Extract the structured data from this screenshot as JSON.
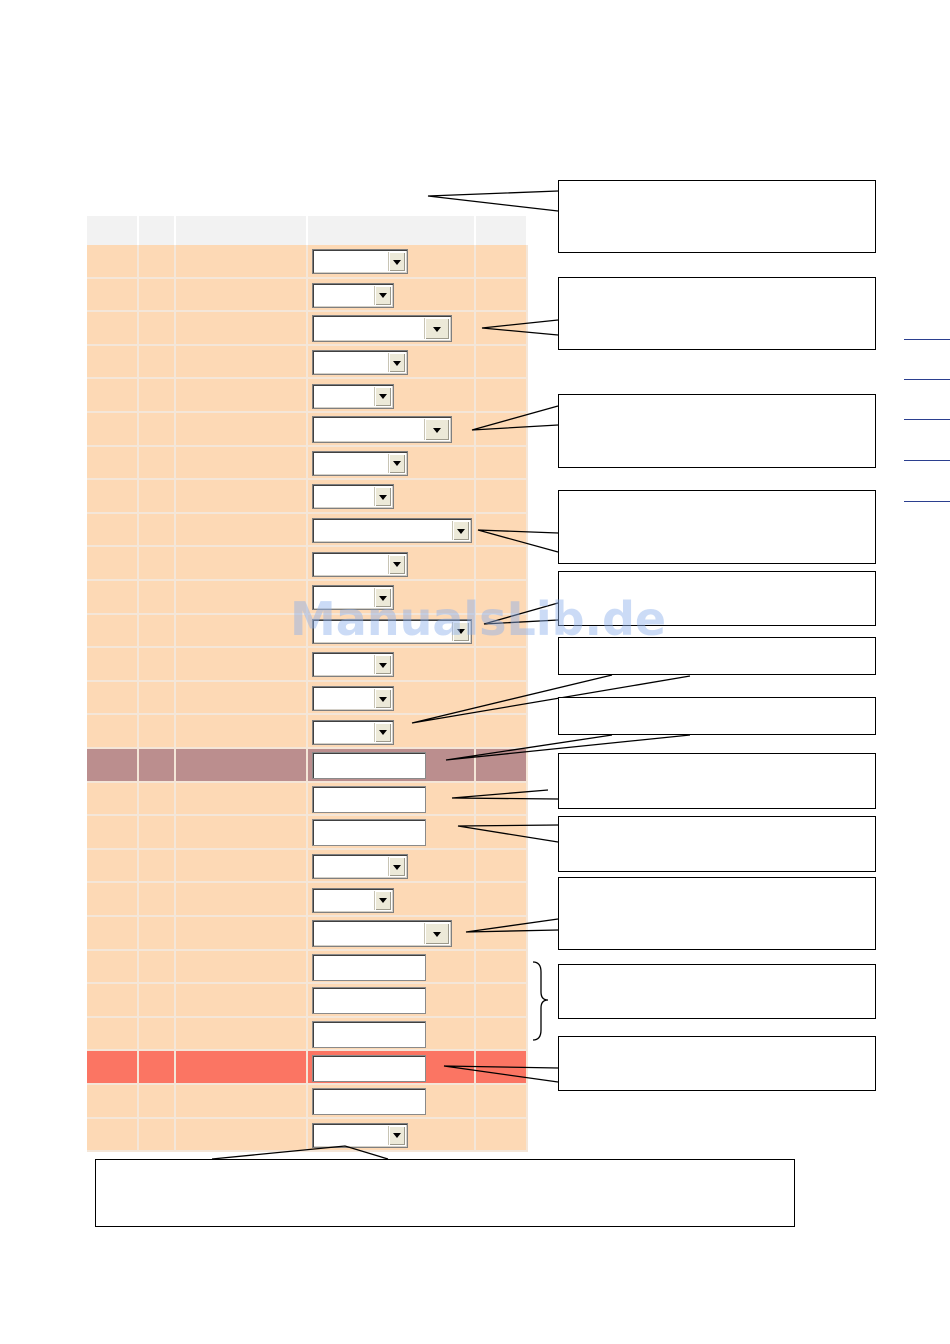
{
  "watermark": "ManualsLib.de",
  "colors": {
    "header": "#f2f2f2",
    "row_default": "#fdd9b5",
    "row_highlight_mauve": "#bb8e8e",
    "row_highlight_red": "#fb7563",
    "grid_line": "#f4e6d8",
    "callout_border": "#000000",
    "rule_link": "#2b3f8f"
  },
  "icons": {
    "dropdown_arrow": "triangle-down-icon",
    "brace": "right-curly-brace"
  },
  "grid": {
    "column_count": 5,
    "rows": [
      {
        "style": "default",
        "control": "select",
        "size": "medium"
      },
      {
        "style": "default",
        "control": "select",
        "size": "small"
      },
      {
        "style": "default",
        "control": "select",
        "size": "large"
      },
      {
        "style": "default",
        "control": "select",
        "size": "medium"
      },
      {
        "style": "default",
        "control": "select",
        "size": "small"
      },
      {
        "style": "default",
        "control": "select",
        "size": "large"
      },
      {
        "style": "default",
        "control": "select",
        "size": "medium"
      },
      {
        "style": "default",
        "control": "select",
        "size": "small"
      },
      {
        "style": "default",
        "control": "select",
        "size": "xlarge"
      },
      {
        "style": "default",
        "control": "select",
        "size": "medium"
      },
      {
        "style": "default",
        "control": "select",
        "size": "small"
      },
      {
        "style": "default",
        "control": "select",
        "size": "xlarge"
      },
      {
        "style": "default",
        "control": "select",
        "size": "small"
      },
      {
        "style": "default",
        "control": "select",
        "size": "small"
      },
      {
        "style": "default",
        "control": "select",
        "size": "small"
      },
      {
        "style": "mauve",
        "control": "text"
      },
      {
        "style": "default",
        "control": "text"
      },
      {
        "style": "default",
        "control": "text"
      },
      {
        "style": "default",
        "control": "select",
        "size": "medium"
      },
      {
        "style": "default",
        "control": "select",
        "size": "small"
      },
      {
        "style": "default",
        "control": "select",
        "size": "large"
      },
      {
        "style": "default",
        "control": "text"
      },
      {
        "style": "default",
        "control": "text"
      },
      {
        "style": "default",
        "control": "text"
      },
      {
        "style": "red",
        "control": "text"
      },
      {
        "style": "default",
        "control": "text"
      },
      {
        "style": "default",
        "control": "select",
        "size": "medium"
      }
    ]
  }
}
